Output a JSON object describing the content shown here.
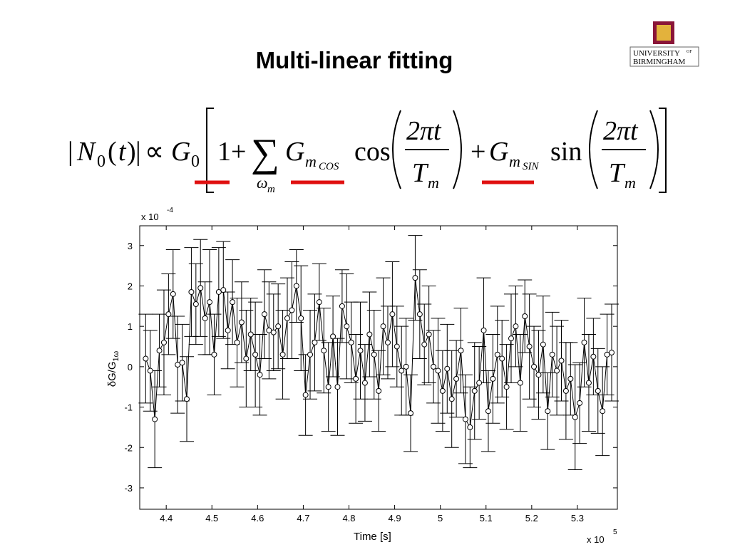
{
  "title": "Multi-linear fitting",
  "logo": {
    "line1": "UNIVERSITY",
    "of": "OF",
    "line2": "BIRMINGHAM"
  },
  "equation": {
    "parts": [
      "|",
      "N",
      "0",
      "(",
      "t",
      ")",
      "|",
      "∝",
      "G",
      "0",
      "1+",
      "∑",
      "ω",
      "m",
      "G",
      "m",
      "COS",
      "cos",
      "2πt",
      "T",
      "m",
      "+",
      "G",
      "m",
      "SIN",
      "sin",
      "2πt",
      "T",
      "m"
    ]
  },
  "chart_data": {
    "type": "errorbar",
    "xlabel": "Time [s]",
    "ylabel": "δG/G",
    "ylabel_sub": "1ω",
    "x_multiplier": "x 10",
    "x_exponent": "5",
    "y_multiplier": "x 10",
    "y_exponent": "-4",
    "color": "#000000",
    "xlim": [
      4.342,
      5.3875
    ],
    "ylim": [
      -3.53,
      3.49
    ],
    "xticks": [
      4.4,
      4.5,
      4.6,
      4.7,
      4.8,
      4.9,
      5,
      5.1,
      5.2,
      5.3
    ],
    "yticks": [
      -3,
      -2,
      -1,
      0,
      1,
      2,
      3
    ],
    "x": [
      4.355,
      4.365,
      4.375,
      4.385,
      4.395,
      4.405,
      4.415,
      4.425,
      4.435,
      4.445,
      4.455,
      4.465,
      4.475,
      4.485,
      4.495,
      4.505,
      4.515,
      4.525,
      4.535,
      4.545,
      4.555,
      4.565,
      4.575,
      4.585,
      4.595,
      4.605,
      4.615,
      4.625,
      4.635,
      4.645,
      4.655,
      4.665,
      4.675,
      4.685,
      4.695,
      4.705,
      4.715,
      4.725,
      4.735,
      4.745,
      4.755,
      4.765,
      4.775,
      4.785,
      4.795,
      4.805,
      4.815,
      4.825,
      4.835,
      4.845,
      4.855,
      4.865,
      4.875,
      4.885,
      4.895,
      4.905,
      4.915,
      4.925,
      4.935,
      4.945,
      4.955,
      4.965,
      4.975,
      4.985,
      4.995,
      5.005,
      5.015,
      5.025,
      5.035,
      5.045,
      5.055,
      5.065,
      5.075,
      5.085,
      5.095,
      5.105,
      5.115,
      5.125,
      5.135,
      5.145,
      5.155,
      5.165,
      5.175,
      5.185,
      5.195,
      5.205,
      5.215,
      5.225,
      5.235,
      5.245,
      5.255,
      5.265,
      5.275,
      5.285,
      5.295,
      5.305,
      5.315,
      5.325,
      5.335,
      5.345,
      5.355,
      5.365,
      5.375
    ],
    "values": [
      0.2,
      -0.1,
      -1.3,
      0.4,
      0.6,
      1.3,
      1.8,
      0.05,
      0.1,
      -0.8,
      1.85,
      1.55,
      1.95,
      1.2,
      1.6,
      0.3,
      1.85,
      1.9,
      0.9,
      1.6,
      0.6,
      1.1,
      0.2,
      0.8,
      0.3,
      -0.2,
      1.3,
      0.9,
      0.85,
      1.0,
      0.3,
      1.2,
      1.4,
      2.0,
      1.2,
      -0.7,
      0.3,
      0.6,
      1.6,
      0.4,
      -0.5,
      0.75,
      -0.5,
      1.5,
      1.0,
      0.6,
      -0.3,
      0.4,
      -0.4,
      0.8,
      0.3,
      -0.6,
      1.0,
      0.6,
      1.3,
      0.5,
      -0.1,
      0.0,
      -1.15,
      2.2,
      1.3,
      0.55,
      0.8,
      0.0,
      -0.1,
      -0.6,
      -0.05,
      -0.8,
      -0.3,
      0.4,
      -1.3,
      -1.5,
      -0.6,
      -0.4,
      0.9,
      -1.1,
      -0.3,
      0.3,
      0.2,
      -0.5,
      0.7,
      1.0,
      -0.4,
      1.25,
      0.5,
      0.0,
      -0.2,
      0.55,
      -1.1,
      0.3,
      -0.1,
      0.15,
      -0.6,
      -0.3,
      -1.25,
      -0.9,
      0.6,
      -0.4,
      0.25,
      -0.6,
      -1.1,
      0.3,
      0.35
    ],
    "errors": [
      1.1,
      1.0,
      1.2,
      0.9,
      1.3,
      1.0,
      1.1,
      1.2,
      0.95,
      1.05,
      1.1,
      1.0,
      1.2,
      0.9,
      1.3,
      1.0,
      1.1,
      1.2,
      0.95,
      1.05,
      1.1,
      1.0,
      1.2,
      0.9,
      1.3,
      1.0,
      1.1,
      1.2,
      0.95,
      1.05,
      1.1,
      1.0,
      1.2,
      0.9,
      1.3,
      1.0,
      1.1,
      1.2,
      0.95,
      1.05,
      1.1,
      1.0,
      1.2,
      0.9,
      1.3,
      1.0,
      1.1,
      1.2,
      0.95,
      1.05,
      1.1,
      1.0,
      1.2,
      0.9,
      1.3,
      1.0,
      1.1,
      1.2,
      0.95,
      1.05,
      1.1,
      1.0,
      1.2,
      0.9,
      1.3,
      1.0,
      1.1,
      1.2,
      0.95,
      1.05,
      1.1,
      1.0,
      1.2,
      0.9,
      1.3,
      1.0,
      1.1,
      1.2,
      0.95,
      1.05,
      1.1,
      1.0,
      1.2,
      0.9,
      1.3,
      1.0,
      1.1,
      1.2,
      0.95,
      1.05,
      1.1,
      1.0,
      1.2,
      0.9,
      1.3,
      1.0,
      1.1,
      1.2,
      0.95,
      1.05,
      1.1,
      1.0,
      1.2
    ]
  }
}
